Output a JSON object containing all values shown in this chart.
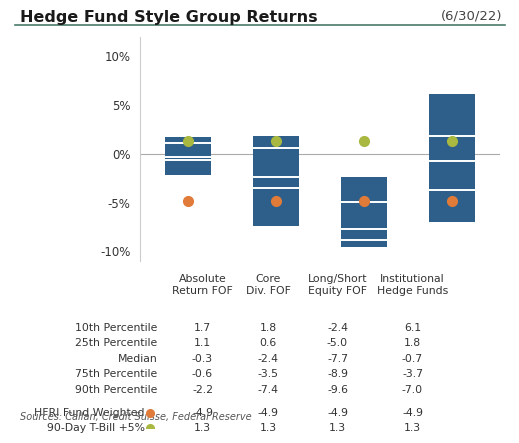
{
  "title": "Hedge Fund Style Group Returns",
  "date_label": "(6/30/22)",
  "categories": [
    "Absolute\nReturn FOF",
    "Core\nDiv. FOF",
    "Long/Short\nEquity FOF",
    "Institutional\nHedge Funds"
  ],
  "p10": [
    1.7,
    1.8,
    -2.4,
    6.1
  ],
  "p25": [
    1.1,
    0.6,
    -5.0,
    1.8
  ],
  "median": [
    -0.3,
    -2.4,
    -7.7,
    -0.7
  ],
  "p75": [
    -0.6,
    -3.5,
    -8.9,
    -3.7
  ],
  "p90": [
    -2.2,
    -7.4,
    -9.6,
    -7.0
  ],
  "hfri": [
    -4.9,
    -4.9,
    -4.9,
    -4.9
  ],
  "tbill": [
    1.3,
    1.3,
    1.3,
    1.3
  ],
  "box_color": "#2E5F8A",
  "median_line_color": "#FFFFFF",
  "hfri_color": "#E07B39",
  "tbill_color": "#A8B840",
  "background_color": "#FFFFFF",
  "separator_color": "#4A7A6A",
  "ylim": [
    -11,
    12
  ],
  "yticks": [
    -10,
    -5,
    0,
    5,
    10
  ],
  "source_text": "Sources: Callan, Credit Suisse, Federal Reserve",
  "table_header": [
    "",
    "Absolute\nReturn FOF",
    "Core\nDiv. FOF",
    "Long/Short\nEquity FOF",
    "Institutional\nHedge Funds"
  ],
  "table_rows": [
    [
      "10th Percentile",
      "1.7",
      "1.8",
      "-2.4",
      "6.1"
    ],
    [
      "25th Percentile",
      "1.1",
      "0.6",
      "-5.0",
      "1.8"
    ],
    [
      "Median",
      "-0.3",
      "-2.4",
      "-7.7",
      "-0.7"
    ],
    [
      "75th Percentile",
      "-0.6",
      "-3.5",
      "-8.9",
      "-3.7"
    ],
    [
      "90th Percentile",
      "-2.2",
      "-7.4",
      "-9.6",
      "-7.0"
    ],
    [
      "",
      "",
      "",
      "",
      ""
    ],
    [
      "HFRI Fund Weighted",
      "-4.9",
      "-4.9",
      "-4.9",
      "-4.9"
    ],
    [
      "90-Day T-Bill +5%",
      "1.3",
      "1.3",
      "1.3",
      "1.3"
    ]
  ]
}
